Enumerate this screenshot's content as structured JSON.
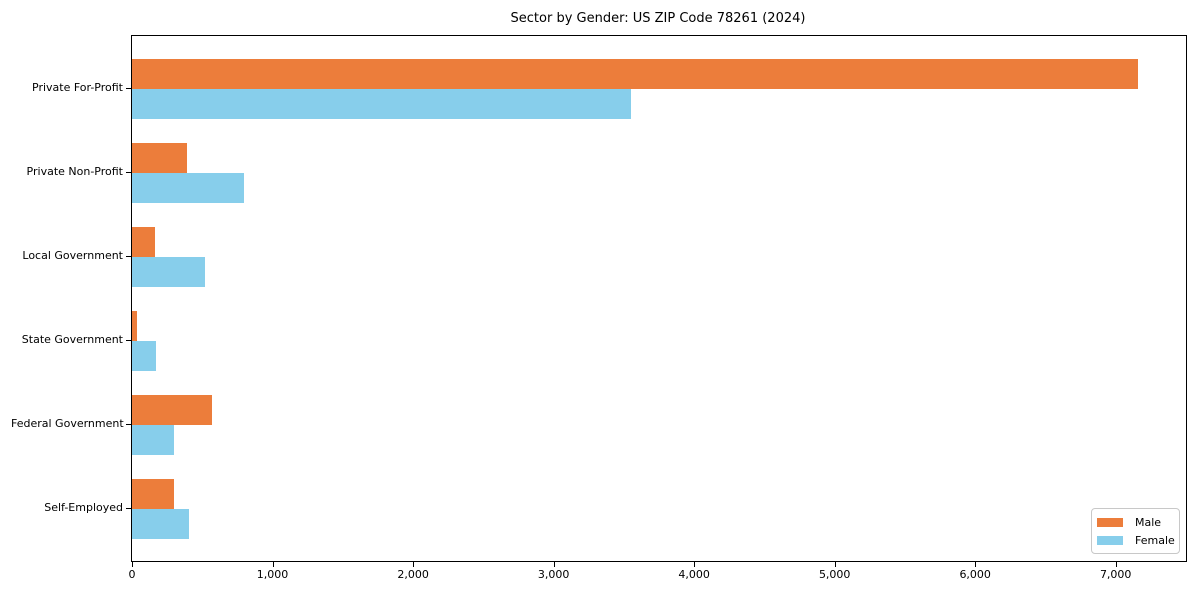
{
  "chart_data": {
    "type": "bar",
    "orientation": "horizontal",
    "title": "Sector by Gender: US ZIP Code 78261 (2024)",
    "categories": [
      "Private For-Profit",
      "Private Non-Profit",
      "Local Government",
      "State Government",
      "Federal Government",
      "Self-Employed"
    ],
    "series": [
      {
        "name": "Male",
        "color": "#EC7D3B",
        "values": [
          7160,
          390,
          160,
          35,
          570,
          295
        ]
      },
      {
        "name": "Female",
        "color": "#87CEEB",
        "values": [
          3550,
          800,
          520,
          170,
          295,
          405
        ]
      }
    ],
    "xlabel": "",
    "ylabel": "",
    "xlim": [
      0,
      7500
    ],
    "xticks": [
      0,
      1000,
      2000,
      3000,
      4000,
      5000,
      6000,
      7000
    ],
    "xtick_labels": [
      "0",
      "1,000",
      "2,000",
      "3,000",
      "4,000",
      "5,000",
      "6,000",
      "7,000"
    ],
    "grid": false,
    "legend_position": "lower right"
  }
}
